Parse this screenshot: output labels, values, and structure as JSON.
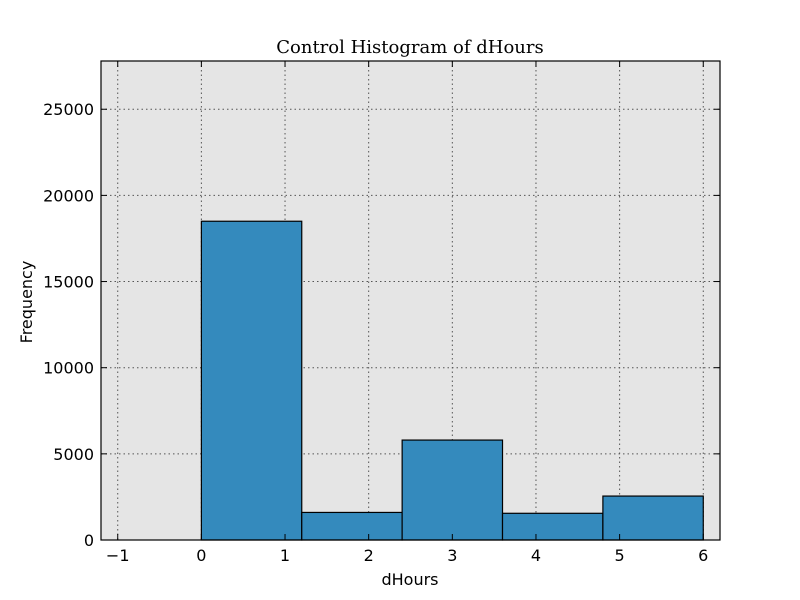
{
  "chart_data": {
    "type": "bar",
    "title": "Control Histogram of dHours",
    "xlabel": "dHours",
    "ylabel": "Frequency",
    "xlim": [
      -1.2,
      6.2
    ],
    "ylim": [
      0,
      27800
    ],
    "xticks": [
      -1,
      0,
      1,
      2,
      3,
      4,
      5,
      6
    ],
    "yticks": [
      0,
      5000,
      10000,
      15000,
      20000,
      25000
    ],
    "xtick_labels": [
      "−1",
      "0",
      "1",
      "2",
      "3",
      "4",
      "5",
      "6"
    ],
    "ytick_labels": [
      "0",
      "5000",
      "10000",
      "15000",
      "20000",
      "25000"
    ],
    "grid": true,
    "bins": [
      {
        "x0": 0.0,
        "x1": 1.2,
        "value": 18500
      },
      {
        "x0": 1.2,
        "x1": 2.4,
        "value": 1600
      },
      {
        "x0": 2.4,
        "x1": 3.6,
        "value": 5800
      },
      {
        "x0": 3.6,
        "x1": 4.8,
        "value": 1550
      },
      {
        "x0": 4.8,
        "x1": 6.0,
        "value": 2550
      }
    ],
    "colors": {
      "bar": "#348abd",
      "plot_bg": "#e5e5e5"
    }
  }
}
